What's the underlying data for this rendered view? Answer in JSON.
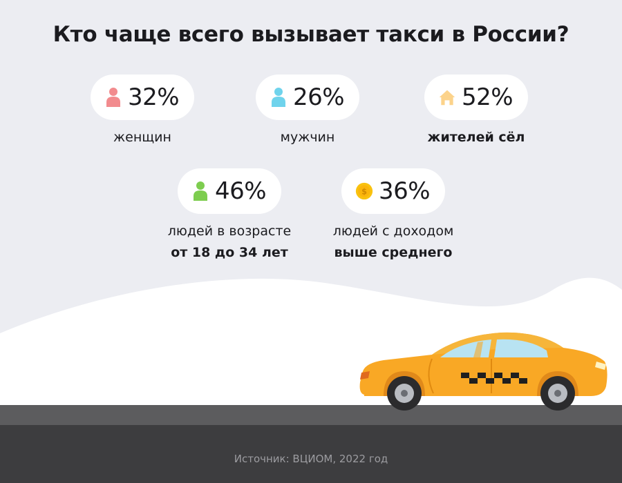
{
  "title": "Кто чаще всего вызывает такси в России?",
  "stats": [
    {
      "id": "women",
      "icon": "person-icon",
      "color": "#f28b8e",
      "value": "32%",
      "caption": "женщин",
      "caption_bold": ""
    },
    {
      "id": "men",
      "icon": "person-icon",
      "color": "#6fd3ec",
      "value": "26%",
      "caption": "мужчин",
      "caption_bold": ""
    },
    {
      "id": "rural",
      "icon": "house-icon",
      "color": "#fcd38b",
      "value": "52%",
      "caption": "",
      "caption_bold": "жителей сёл"
    },
    {
      "id": "young",
      "icon": "person-icon",
      "color": "#7dcd4f",
      "value": "46%",
      "caption": "людей в возрасте",
      "caption_bold": "от 18 до 34 лет"
    },
    {
      "id": "income",
      "icon": "coin-icon",
      "color": "#f9c20f",
      "value": "36%",
      "caption": "людей с доходом",
      "caption_bold": "выше среднего"
    }
  ],
  "source": "Источник: ВЦИОМ, 2022 год",
  "colors": {
    "background": "#ecedf2",
    "car_body": "#f9a825",
    "road": "#5c5c5e",
    "footer": "#3d3d3f"
  }
}
